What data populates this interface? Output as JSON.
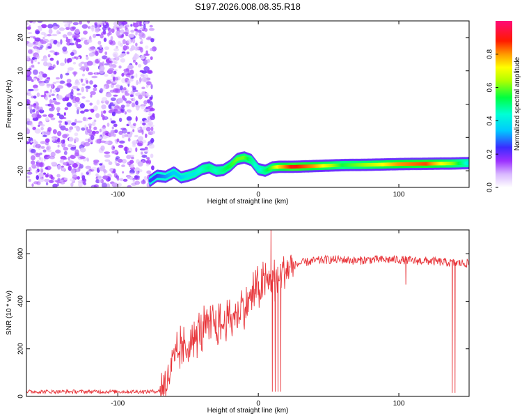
{
  "figure": {
    "title": "S197.2026.008.08.35.R18"
  },
  "chart_data": [
    {
      "type": "heatmap",
      "xlabel": "Height of straight line (km)",
      "ylabel": "Frequency (Hz)",
      "xlim": [
        -165,
        150
      ],
      "ylim": [
        -25,
        25
      ],
      "x_ticks": [
        -100,
        0,
        100
      ],
      "y_ticks": [
        -20,
        -10,
        0,
        10,
        20
      ],
      "colorbar": {
        "label": "Normalized spectral amplitude",
        "range": [
          0,
          1
        ],
        "ticks": [
          0.0,
          0.2,
          0.4,
          0.6,
          0.8
        ],
        "tick_labels": [
          "0.0",
          "0.2",
          "0.4",
          "0.6",
          "0.8"
        ]
      },
      "noise_region": {
        "x_range": [
          -165,
          -77
        ],
        "y_range": [
          -25,
          25
        ],
        "amplitude": 0.1
      },
      "signal_trace": {
        "x": [
          -77,
          -72,
          -66,
          -60,
          -55,
          -50,
          -45,
          -40,
          -35,
          -30,
          -25,
          -20,
          -15,
          -10,
          -5,
          0,
          5,
          10,
          15,
          25,
          40,
          60,
          80,
          100,
          120,
          140,
          150
        ],
        "frequency": [
          -23,
          -21.5,
          -21.8,
          -20.5,
          -22,
          -21.5,
          -20.8,
          -19.5,
          -19,
          -20,
          -19.8,
          -18.5,
          -16.5,
          -16,
          -16.8,
          -19.5,
          -20,
          -19,
          -18.8,
          -18.8,
          -18.6,
          -18.3,
          -18.2,
          -18.0,
          -17.9,
          -17.8,
          -17.7
        ],
        "amplitude": [
          0.25,
          0.25,
          0.3,
          0.35,
          0.35,
          0.4,
          0.4,
          0.45,
          0.5,
          0.45,
          0.5,
          0.55,
          0.6,
          0.6,
          0.5,
          0.4,
          0.5,
          0.6,
          0.75,
          0.9,
          0.8,
          0.55,
          0.65,
          0.8,
          0.85,
          0.6,
          0.4
        ]
      }
    },
    {
      "type": "line",
      "xlabel": "Height of straight line (km)",
      "ylabel": "SNR (10 * v/v)",
      "xlim": [
        -165,
        150
      ],
      "ylim": [
        0,
        700
      ],
      "x_ticks": [
        -100,
        0,
        100
      ],
      "y_ticks": [
        0,
        200,
        400,
        600
      ],
      "series": [
        {
          "name": "SNR",
          "color": "#e8353a",
          "x": [
            -165,
            -140,
            -120,
            -100,
            -80,
            -70,
            -65,
            -62,
            -58,
            -55,
            -52,
            -48,
            -45,
            -42,
            -40,
            -37,
            -35,
            -32,
            -30,
            -27,
            -25,
            -22,
            -20,
            -17,
            -15,
            -12,
            -10,
            -8,
            -5,
            -3,
            0,
            3,
            5,
            8,
            10,
            12,
            15,
            20,
            25,
            30,
            40,
            50,
            60,
            70,
            80,
            90,
            100,
            110,
            120,
            130,
            140,
            150
          ],
          "y": [
            20,
            20,
            20,
            20,
            20,
            22,
            60,
            120,
            160,
            210,
            180,
            260,
            220,
            300,
            250,
            310,
            270,
            330,
            280,
            300,
            300,
            330,
            320,
            340,
            330,
            380,
            360,
            390,
            420,
            440,
            450,
            470,
            470,
            490,
            500,
            490,
            510,
            530,
            550,
            560,
            570,
            575,
            575,
            570,
            575,
            575,
            575,
            570,
            570,
            565,
            560,
            560
          ],
          "spikes": [
            {
              "x": 9,
              "y": 700
            },
            {
              "x": 10,
              "y": 20
            },
            {
              "x": 12,
              "y": 20
            },
            {
              "x": 14,
              "y": 20
            },
            {
              "x": 16,
              "y": 20
            },
            {
              "x": 105,
              "y": 470
            },
            {
              "x": 138,
              "y": 15
            },
            {
              "x": 140,
              "y": 15
            }
          ]
        }
      ]
    }
  ]
}
